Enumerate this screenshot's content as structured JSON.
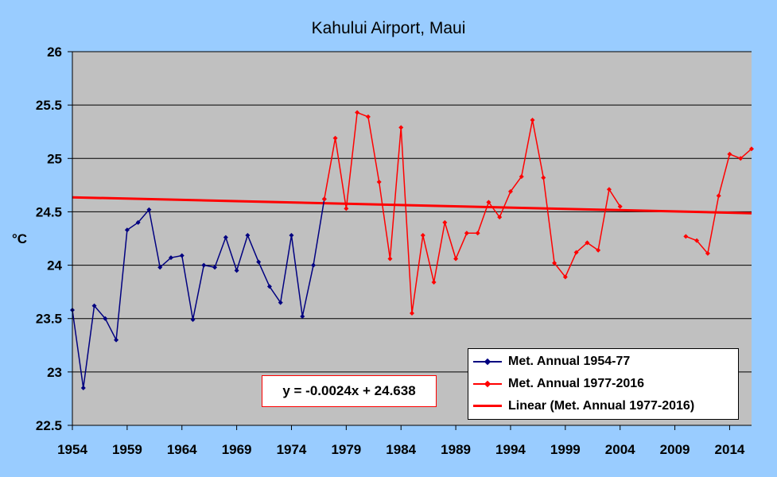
{
  "chart_data": {
    "type": "line",
    "title": "Kahului Airport, Maui",
    "ylabel": "°C",
    "xlabel": "",
    "xlim": [
      1954,
      2016
    ],
    "ylim": [
      22.5,
      26
    ],
    "x_ticks": [
      "1954",
      "1959",
      "1964",
      "1969",
      "1974",
      "1979",
      "1984",
      "1989",
      "1994",
      "1999",
      "2004",
      "2009",
      "2014"
    ],
    "y_ticks": [
      "22.5",
      "23",
      "23.5",
      "24",
      "24.5",
      "25",
      "25.5",
      "26"
    ],
    "grid": "horizontal",
    "plot_background": "#c0c0c0",
    "page_background": "#99ccff",
    "legend_position": "bottom-right",
    "series": [
      {
        "name": "Met. Annual 1954-77",
        "color": "#000080",
        "marker": "diamond",
        "x": [
          1954,
          1955,
          1956,
          1957,
          1958,
          1959,
          1960,
          1961,
          1962,
          1963,
          1964,
          1965,
          1966,
          1967,
          1968,
          1969,
          1970,
          1971,
          1972,
          1973,
          1974,
          1975,
          1976,
          1977
        ],
        "y": [
          23.58,
          22.85,
          23.62,
          23.5,
          23.3,
          24.33,
          24.4,
          24.52,
          23.98,
          24.07,
          24.09,
          23.49,
          24.0,
          23.98,
          24.26,
          23.95,
          24.28,
          24.03,
          23.8,
          23.65,
          24.28,
          23.52,
          24.0,
          24.62
        ]
      },
      {
        "name": "Met. Annual 1977-2016",
        "color": "#ff0000",
        "marker": "diamond",
        "x": [
          1977,
          1978,
          1979,
          1980,
          1981,
          1982,
          1983,
          1984,
          1985,
          1986,
          1987,
          1988,
          1989,
          1990,
          1991,
          1992,
          1993,
          1994,
          1995,
          1996,
          1997,
          1998,
          1999,
          2000,
          2001,
          2002,
          2003,
          2004,
          2010,
          2011,
          2012,
          2013,
          2014,
          2015,
          2016
        ],
        "y": [
          24.62,
          25.19,
          24.53,
          25.43,
          25.39,
          24.78,
          24.06,
          25.29,
          23.55,
          24.28,
          23.84,
          24.4,
          24.06,
          24.3,
          24.3,
          24.59,
          24.45,
          24.69,
          24.83,
          25.36,
          24.82,
          24.02,
          23.89,
          24.12,
          24.21,
          24.14,
          24.71,
          24.55,
          24.27,
          24.23,
          24.11,
          24.65,
          25.04,
          25.0,
          25.09
        ]
      },
      {
        "name": "Linear (Met. Annual 1977-2016)",
        "color": "#ff0000",
        "type": "trendline",
        "slope": -0.0024,
        "intercept": 24.638
      }
    ],
    "annotation": "y = -0.0024x + 24.638"
  }
}
